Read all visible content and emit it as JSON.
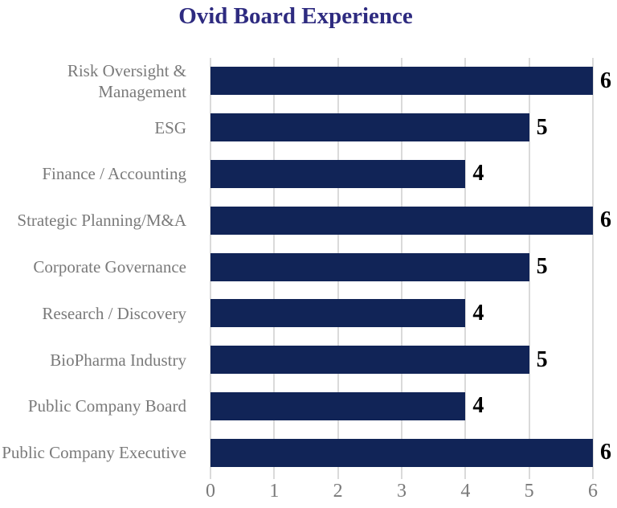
{
  "title": "Ovid Board Experience",
  "colors": {
    "background": "#ffffff",
    "bar": "#112457",
    "title_text": "#2e2b80",
    "category_label_text": "#7a7a7a",
    "tick_label_text": "#7a7a7a",
    "value_label_text": "#000000",
    "gridline": "#dadada"
  },
  "chart_data": {
    "type": "bar",
    "orientation": "horizontal",
    "title": "Ovid Board Experience",
    "categories": [
      "Risk Oversight & Management",
      "ESG",
      "Finance / Accounting",
      "Strategic Planning/M&A",
      "Corporate Governance",
      "Research / Discovery",
      "BioPharma Industry",
      "Public Company Board",
      "Public Company Executive"
    ],
    "values": [
      6,
      5,
      4,
      6,
      5,
      4,
      5,
      4,
      6
    ],
    "value_labels_shown": true,
    "xlabel": "",
    "ylabel": "",
    "xlim": [
      0,
      6
    ],
    "xticks": [
      0,
      1,
      2,
      3,
      4,
      5,
      6
    ],
    "grid": "vertical-only",
    "legend": "none"
  }
}
